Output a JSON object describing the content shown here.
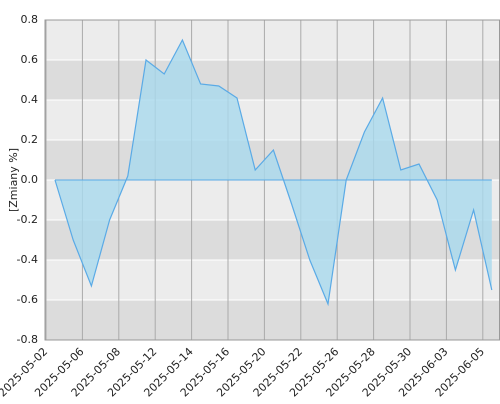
{
  "chart_data": {
    "type": "area",
    "y_label": "[Zmiany %]",
    "categories": [
      "2025-05-02",
      null,
      "2025-05-06",
      null,
      "2025-05-08",
      null,
      "2025-05-12",
      null,
      "2025-05-14",
      null,
      "2025-05-16",
      null,
      "2025-05-20",
      null,
      "2025-05-22",
      null,
      "2025-05-26",
      null,
      "2025-05-28",
      null,
      "2025-05-30",
      null,
      "2025-06-03",
      null,
      "2025-06-05"
    ],
    "values": [
      0,
      -0.3,
      -0.53,
      -0.2,
      0.02,
      0.6,
      0.53,
      0.7,
      0.48,
      0.47,
      0.41,
      0.05,
      0.15,
      -0.12,
      -0.4,
      -0.62,
      0,
      0.24,
      0.41,
      0.05,
      0.08,
      -0.1,
      -0.45,
      -0.15,
      -0.55
    ],
    "color": "#5aaae6",
    "fill": "#a9d9ee",
    "ylim": [
      -0.8,
      0.8
    ],
    "yticks": [
      -0.8,
      -0.6,
      -0.4,
      -0.2,
      {
        "value": 0,
        "label": "0.0"
      },
      0.2,
      0.4,
      0.6,
      0.8
    ],
    "grid": true
  }
}
